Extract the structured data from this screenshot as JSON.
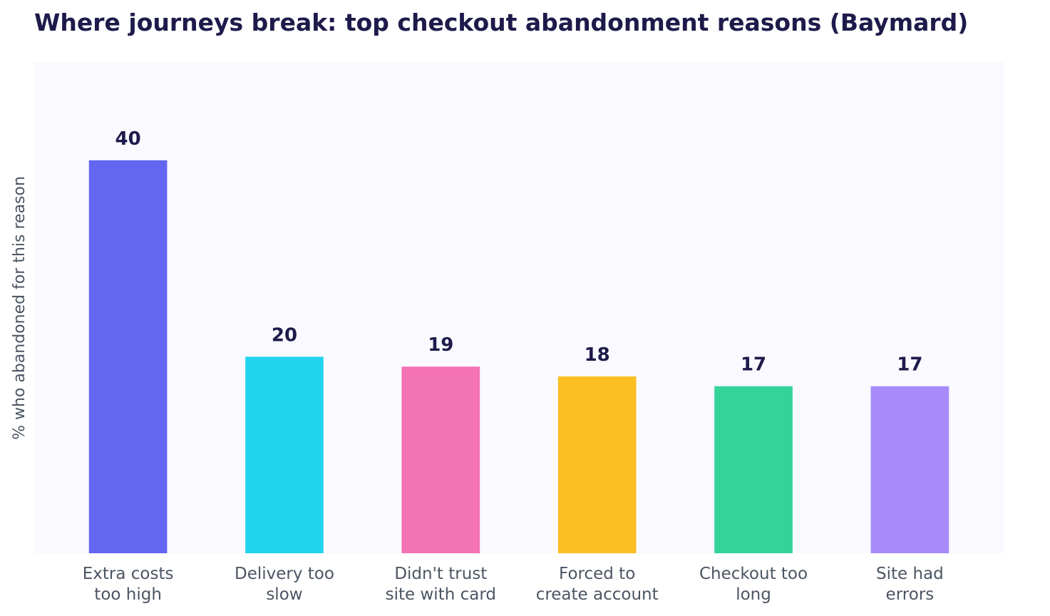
{
  "chart_data": {
    "type": "bar",
    "title": "Where journeys break: top checkout abandonment reasons (Baymard)",
    "xlabel": "",
    "ylabel": "% who abandoned for this reason",
    "categories": [
      [
        "Extra costs",
        "too high"
      ],
      [
        "Delivery too",
        "slow"
      ],
      [
        "Didn't trust",
        "site with card"
      ],
      [
        "Forced to",
        "create account"
      ],
      [
        "Checkout too",
        "long"
      ],
      [
        "Site had",
        "errors"
      ]
    ],
    "values": [
      40,
      20,
      19,
      18,
      17,
      17
    ],
    "colors": [
      "#6366f1",
      "#22d3ee",
      "#f472b6",
      "#fbbf24",
      "#34d399",
      "#a78bfa"
    ],
    "ylim": [
      0,
      50
    ],
    "grid": false,
    "background": "#f9f9ff",
    "title_color": "#1e1b4b",
    "label_color": "#4b5563"
  }
}
